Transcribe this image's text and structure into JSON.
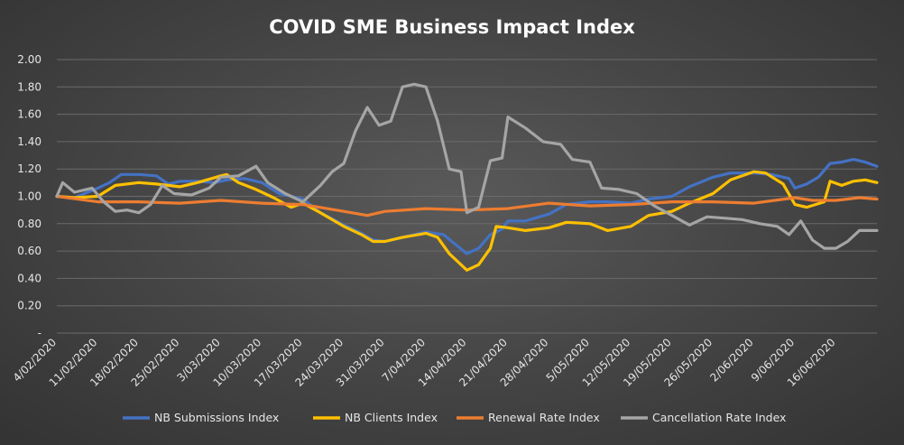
{
  "chart_data": {
    "type": "line",
    "title": "COVID SME Business Impact Index",
    "xlabel": "",
    "ylabel": "",
    "ylim": [
      0,
      2.0
    ],
    "y_ticks": [
      "-",
      "0.20",
      "0.40",
      "0.60",
      "0.80",
      "1.00",
      "1.20",
      "1.40",
      "1.60",
      "1.80",
      "2.00"
    ],
    "x_ticks": [
      "4/02/2020",
      "11/02/2020",
      "18/02/2020",
      "25/02/2020",
      "3/03/2020",
      "10/03/2020",
      "17/03/2020",
      "24/03/2020",
      "31/03/2020",
      "7/04/2020",
      "14/04/2020",
      "21/04/2020",
      "28/04/2020",
      "5/05/2020",
      "12/05/2020",
      "19/05/2020",
      "26/05/2020",
      "2/06/2020",
      "9/06/2020",
      "16/06/2020"
    ],
    "x_start": "4/02/2020",
    "x_end": "23/06/2020",
    "grid": "horizontal",
    "legend": "bottom",
    "colors": {
      "background": "#454545",
      "grid": "#6a6a6a",
      "text": "#e6e6e6"
    },
    "series": [
      {
        "name": "NB Submissions Index",
        "color": "#4472C4",
        "points": [
          [
            "4/02/2020",
            1.0
          ],
          [
            "7/02/2020",
            0.99
          ],
          [
            "11/02/2020",
            1.06
          ],
          [
            "13/02/2020",
            1.1
          ],
          [
            "15/02/2020",
            1.16
          ],
          [
            "18/02/2020",
            1.16
          ],
          [
            "21/02/2020",
            1.15
          ],
          [
            "23/02/2020",
            1.09
          ],
          [
            "25/02/2020",
            1.11
          ],
          [
            "28/02/2020",
            1.11
          ],
          [
            "2/03/2020",
            1.1
          ],
          [
            "4/03/2020",
            1.12
          ],
          [
            "7/03/2020",
            1.13
          ],
          [
            "10/03/2020",
            1.1
          ],
          [
            "13/03/2020",
            1.02
          ],
          [
            "17/03/2020",
            0.98
          ],
          [
            "20/03/2020",
            0.88
          ],
          [
            "24/03/2020",
            0.79
          ],
          [
            "27/03/2020",
            0.73
          ],
          [
            "29/03/2020",
            0.68
          ],
          [
            "31/03/2020",
            0.67
          ],
          [
            "3/04/2020",
            0.7
          ],
          [
            "7/04/2020",
            0.74
          ],
          [
            "10/04/2020",
            0.72
          ],
          [
            "12/04/2020",
            0.65
          ],
          [
            "14/04/2020",
            0.58
          ],
          [
            "16/04/2020",
            0.62
          ],
          [
            "18/04/2020",
            0.72
          ],
          [
            "20/04/2020",
            0.76
          ],
          [
            "21/04/2020",
            0.82
          ],
          [
            "24/04/2020",
            0.82
          ],
          [
            "28/04/2020",
            0.87
          ],
          [
            "1/05/2020",
            0.94
          ],
          [
            "5/05/2020",
            0.96
          ],
          [
            "8/05/2020",
            0.96
          ],
          [
            "12/05/2020",
            0.95
          ],
          [
            "15/05/2020",
            0.98
          ],
          [
            "19/05/2020",
            1.0
          ],
          [
            "22/05/2020",
            1.07
          ],
          [
            "26/05/2020",
            1.14
          ],
          [
            "29/05/2020",
            1.17
          ],
          [
            "2/06/2020",
            1.17
          ],
          [
            "5/06/2020",
            1.16
          ],
          [
            "8/06/2020",
            1.13
          ],
          [
            "9/06/2020",
            1.06
          ],
          [
            "11/06/2020",
            1.09
          ],
          [
            "13/06/2020",
            1.14
          ],
          [
            "15/06/2020",
            1.24
          ],
          [
            "17/06/2020",
            1.25
          ],
          [
            "19/06/2020",
            1.27
          ],
          [
            "21/06/2020",
            1.25
          ],
          [
            "23/06/2020",
            1.22
          ]
        ]
      },
      {
        "name": "NB Clients Index",
        "color": "#FFC000",
        "points": [
          [
            "4/02/2020",
            1.0
          ],
          [
            "7/02/2020",
            0.99
          ],
          [
            "11/02/2020",
            1.0
          ],
          [
            "14/02/2020",
            1.08
          ],
          [
            "18/02/2020",
            1.1
          ],
          [
            "21/02/2020",
            1.09
          ],
          [
            "25/02/2020",
            1.07
          ],
          [
            "28/02/2020",
            1.1
          ],
          [
            "3/03/2020",
            1.15
          ],
          [
            "4/03/2020",
            1.16
          ],
          [
            "6/03/2020",
            1.1
          ],
          [
            "9/03/2020",
            1.05
          ],
          [
            "12/03/2020",
            0.99
          ],
          [
            "15/03/2020",
            0.92
          ],
          [
            "17/03/2020",
            0.95
          ],
          [
            "20/03/2020",
            0.88
          ],
          [
            "24/03/2020",
            0.78
          ],
          [
            "27/03/2020",
            0.72
          ],
          [
            "29/03/2020",
            0.67
          ],
          [
            "31/03/2020",
            0.67
          ],
          [
            "3/04/2020",
            0.7
          ],
          [
            "7/04/2020",
            0.73
          ],
          [
            "9/04/2020",
            0.7
          ],
          [
            "11/04/2020",
            0.58
          ],
          [
            "14/04/2020",
            0.46
          ],
          [
            "16/04/2020",
            0.5
          ],
          [
            "18/04/2020",
            0.62
          ],
          [
            "19/04/2020",
            0.78
          ],
          [
            "21/04/2020",
            0.77
          ],
          [
            "24/04/2020",
            0.75
          ],
          [
            "28/04/2020",
            0.77
          ],
          [
            "1/05/2020",
            0.81
          ],
          [
            "5/05/2020",
            0.8
          ],
          [
            "8/05/2020",
            0.75
          ],
          [
            "12/05/2020",
            0.78
          ],
          [
            "15/05/2020",
            0.86
          ],
          [
            "19/05/2020",
            0.89
          ],
          [
            "22/05/2020",
            0.95
          ],
          [
            "26/05/2020",
            1.02
          ],
          [
            "29/05/2020",
            1.12
          ],
          [
            "2/06/2020",
            1.18
          ],
          [
            "4/06/2020",
            1.17
          ],
          [
            "7/06/2020",
            1.09
          ],
          [
            "9/06/2020",
            0.94
          ],
          [
            "11/06/2020",
            0.92
          ],
          [
            "14/06/2020",
            0.96
          ],
          [
            "15/06/2020",
            1.11
          ],
          [
            "17/06/2020",
            1.08
          ],
          [
            "19/06/2020",
            1.11
          ],
          [
            "21/06/2020",
            1.12
          ],
          [
            "23/06/2020",
            1.1
          ]
        ]
      },
      {
        "name": "Renewal Rate Index",
        "color": "#ED7D31",
        "points": [
          [
            "4/02/2020",
            1.0
          ],
          [
            "11/02/2020",
            0.96
          ],
          [
            "18/02/2020",
            0.96
          ],
          [
            "25/02/2020",
            0.95
          ],
          [
            "3/03/2020",
            0.97
          ],
          [
            "10/03/2020",
            0.95
          ],
          [
            "17/03/2020",
            0.94
          ],
          [
            "24/03/2020",
            0.89
          ],
          [
            "28/03/2020",
            0.86
          ],
          [
            "31/03/2020",
            0.89
          ],
          [
            "7/04/2020",
            0.91
          ],
          [
            "14/04/2020",
            0.9
          ],
          [
            "21/04/2020",
            0.91
          ],
          [
            "28/04/2020",
            0.95
          ],
          [
            "5/05/2020",
            0.93
          ],
          [
            "12/05/2020",
            0.94
          ],
          [
            "19/05/2020",
            0.96
          ],
          [
            "26/05/2020",
            0.96
          ],
          [
            "2/06/2020",
            0.95
          ],
          [
            "9/06/2020",
            0.99
          ],
          [
            "12/06/2020",
            0.97
          ],
          [
            "16/06/2020",
            0.97
          ],
          [
            "20/06/2020",
            0.99
          ],
          [
            "23/06/2020",
            0.98
          ]
        ]
      },
      {
        "name": "Cancellation Rate Index",
        "color": "#A5A5A5",
        "points": [
          [
            "4/02/2020",
            1.0
          ],
          [
            "5/02/2020",
            1.1
          ],
          [
            "7/02/2020",
            1.03
          ],
          [
            "10/02/2020",
            1.06
          ],
          [
            "12/02/2020",
            0.96
          ],
          [
            "14/02/2020",
            0.89
          ],
          [
            "16/02/2020",
            0.9
          ],
          [
            "18/02/2020",
            0.88
          ],
          [
            "20/02/2020",
            0.94
          ],
          [
            "22/02/2020",
            1.08
          ],
          [
            "24/02/2020",
            1.02
          ],
          [
            "27/02/2020",
            1.01
          ],
          [
            "1/03/2020",
            1.06
          ],
          [
            "3/03/2020",
            1.14
          ],
          [
            "6/03/2020",
            1.15
          ],
          [
            "9/03/2020",
            1.22
          ],
          [
            "11/03/2020",
            1.1
          ],
          [
            "14/03/2020",
            1.02
          ],
          [
            "17/03/2020",
            0.96
          ],
          [
            "20/03/2020",
            1.08
          ],
          [
            "22/03/2020",
            1.18
          ],
          [
            "24/03/2020",
            1.24
          ],
          [
            "26/03/2020",
            1.48
          ],
          [
            "28/03/2020",
            1.65
          ],
          [
            "30/03/2020",
            1.52
          ],
          [
            "1/04/2020",
            1.55
          ],
          [
            "3/04/2020",
            1.8
          ],
          [
            "5/04/2020",
            1.82
          ],
          [
            "7/04/2020",
            1.8
          ],
          [
            "9/04/2020",
            1.55
          ],
          [
            "11/04/2020",
            1.2
          ],
          [
            "13/04/2020",
            1.18
          ],
          [
            "14/04/2020",
            0.88
          ],
          [
            "16/04/2020",
            0.92
          ],
          [
            "18/04/2020",
            1.26
          ],
          [
            "20/04/2020",
            1.28
          ],
          [
            "21/04/2020",
            1.58
          ],
          [
            "24/04/2020",
            1.5
          ],
          [
            "27/04/2020",
            1.4
          ],
          [
            "30/04/2020",
            1.38
          ],
          [
            "2/05/2020",
            1.27
          ],
          [
            "5/05/2020",
            1.25
          ],
          [
            "7/05/2020",
            1.06
          ],
          [
            "10/05/2020",
            1.05
          ],
          [
            "13/05/2020",
            1.02
          ],
          [
            "16/05/2020",
            0.93
          ],
          [
            "19/05/2020",
            0.86
          ],
          [
            "22/05/2020",
            0.79
          ],
          [
            "25/05/2020",
            0.85
          ],
          [
            "28/05/2020",
            0.84
          ],
          [
            "31/05/2020",
            0.83
          ],
          [
            "3/06/2020",
            0.8
          ],
          [
            "6/06/2020",
            0.78
          ],
          [
            "8/06/2020",
            0.72
          ],
          [
            "10/06/2020",
            0.82
          ],
          [
            "12/06/2020",
            0.68
          ],
          [
            "14/06/2020",
            0.62
          ],
          [
            "16/06/2020",
            0.62
          ],
          [
            "18/06/2020",
            0.67
          ],
          [
            "20/06/2020",
            0.75
          ],
          [
            "23/06/2020",
            0.75
          ]
        ]
      }
    ]
  }
}
